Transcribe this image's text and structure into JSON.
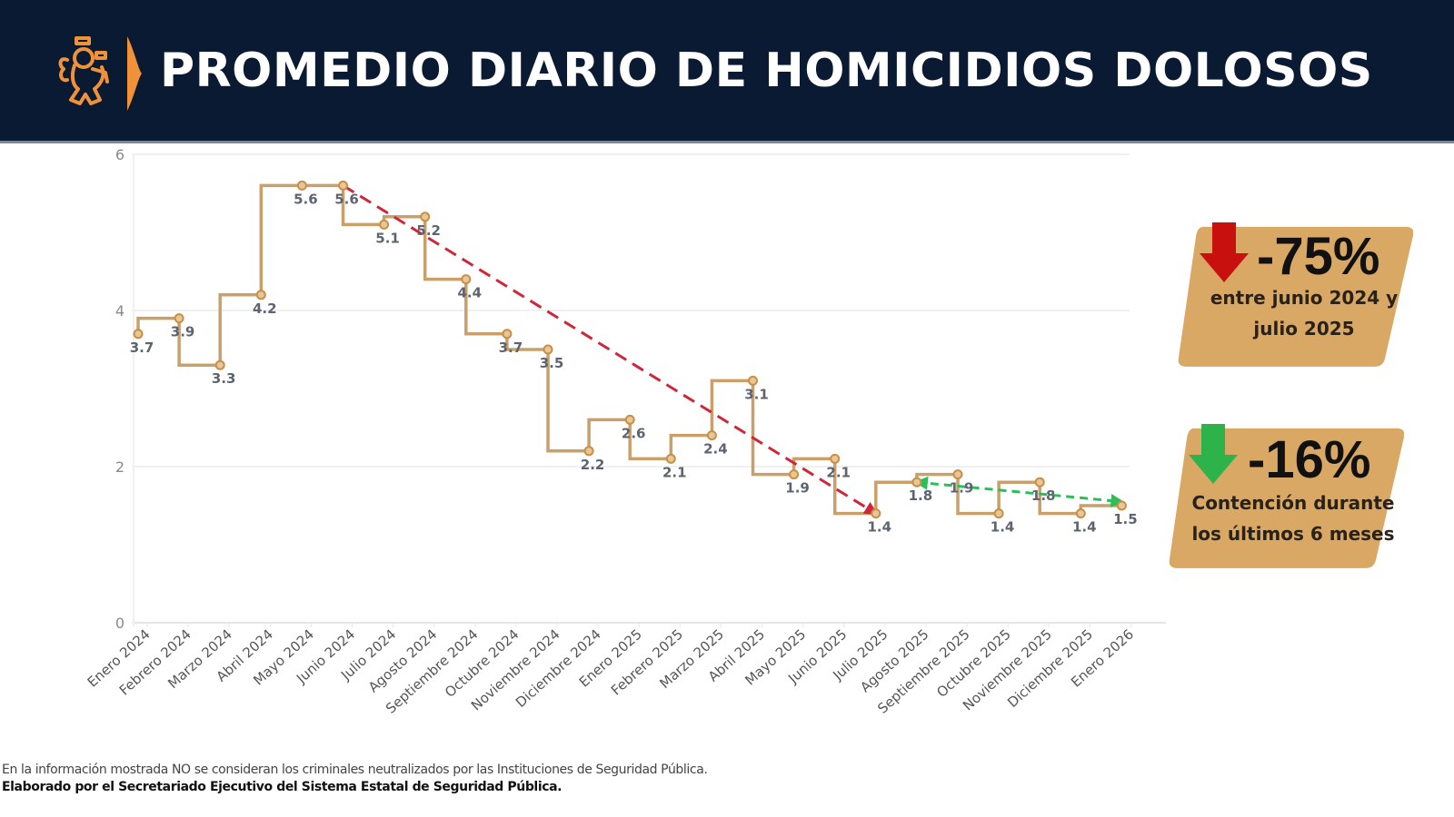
{
  "header": {
    "title": "PROMEDIO DIARIO DE HOMICIDIOS DOLOSOS",
    "logo_icon": "lion-emblem-icon",
    "bg_color": "#0b1a33",
    "accent_color": "#f0923a"
  },
  "badges": [
    {
      "value": "-75%",
      "text_line1": "entre junio 2024 y",
      "text_line2": "julio 2025",
      "arrow_icon": "arrow-down-icon",
      "arrow_color": "#c8100e",
      "bg_color": "#d9a864"
    },
    {
      "value": "-16%",
      "text_line1": "Contención durante",
      "text_line2": "los últimos 6 meses",
      "arrow_icon": "arrow-down-icon",
      "arrow_color": "#2db34a",
      "bg_color": "#d9a864"
    }
  ],
  "footer": {
    "note": "En la información mostrada NO se consideran los criminales neutralizados por las Instituciones de Seguridad Pública.",
    "credit": "Elaborado por el Secretariado Ejecutivo del Sistema Estatal de Seguridad Pública."
  },
  "chart_data": {
    "type": "line",
    "line_shape": "step",
    "title": "PROMEDIO DIARIO DE HOMICIDIOS DOLOSOS",
    "xlabel": "",
    "ylabel": "",
    "ylim": [
      0,
      6
    ],
    "yticks": [
      0,
      2,
      4,
      6
    ],
    "grid": true,
    "legend": null,
    "line_color": "#c9a06a",
    "categories": [
      "Enero 2024",
      "Febrero 2024",
      "Marzo 2024",
      "Abril 2024",
      "Mayo 2024",
      "Junio 2024",
      "Julio 2024",
      "Agosto 2024",
      "Septiembre 2024",
      "Octubre 2024",
      "Noviembre 2024",
      "Diciembre 2024",
      "Enero 2025",
      "Febrero 2025",
      "Marzo 2025",
      "Abril 2025",
      "Mayo 2025",
      "Junio 2025",
      "Julio 2025",
      "Agosto 2025",
      "Septiembre 2025",
      "Octubre 2025",
      "Noviembre 2025",
      "Diciembre 2025",
      "Enero 2026"
    ],
    "series": [
      {
        "name": "Promedio diario",
        "values": [
          3.7,
          3.9,
          3.3,
          4.2,
          5.6,
          5.6,
          5.1,
          5.2,
          4.4,
          3.7,
          3.5,
          2.2,
          2.6,
          2.1,
          2.4,
          3.1,
          1.9,
          2.1,
          1.4,
          1.8,
          1.9,
          1.4,
          1.8,
          1.4,
          1.5
        ]
      }
    ],
    "annotations": [
      {
        "type": "trend-arrow",
        "color": "#d0263a",
        "style": "dashed",
        "from": {
          "x": "Junio 2024",
          "y": 5.6
        },
        "to": {
          "x": "Julio 2025",
          "y": 1.4
        },
        "label": "-75%"
      },
      {
        "type": "trend-arrow",
        "color": "#2bbf5a",
        "style": "dashed",
        "from": {
          "x": "Agosto 2025",
          "y": 1.8
        },
        "to": {
          "x": "Enero 2026",
          "y": 1.55
        },
        "label": "-16%"
      }
    ]
  }
}
